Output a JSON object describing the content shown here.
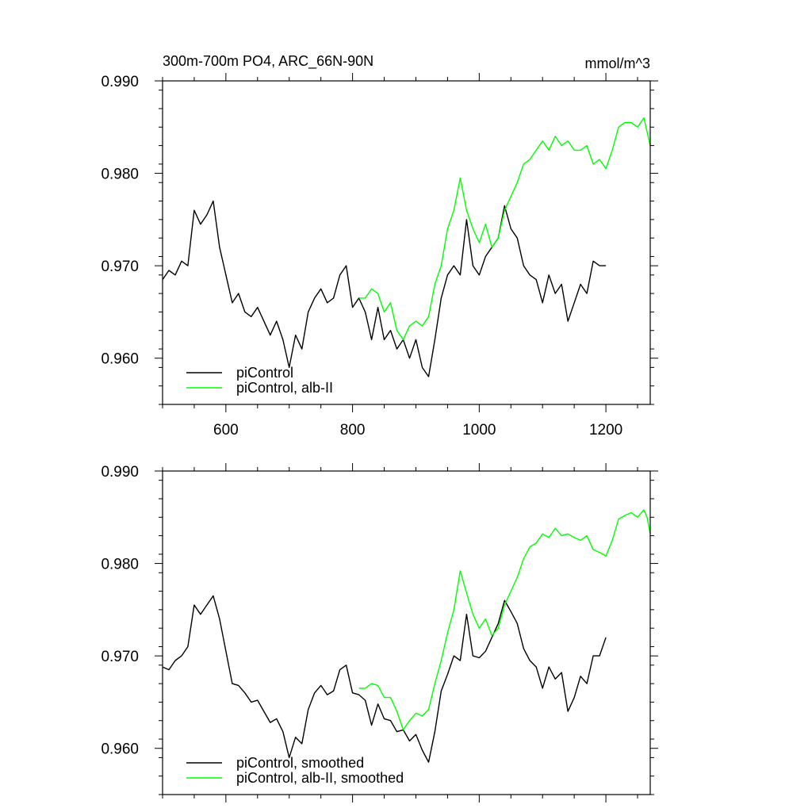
{
  "chart_data": [
    {
      "type": "line",
      "title": "300m-700m PO4, ARC_66N-90N",
      "units": "mmol/m^3",
      "xlim": [
        500,
        1270
      ],
      "ylim": [
        0.955,
        0.99
      ],
      "x_ticks": [
        600,
        800,
        1000,
        1200
      ],
      "x_tick_labels": [
        "600",
        "800",
        "1000",
        "1200"
      ],
      "y_ticks": [
        0.96,
        0.97,
        0.98,
        0.99
      ],
      "y_tick_labels": [
        "0.960",
        "0.970",
        "0.980",
        "0.990"
      ],
      "show_x_tick_labels": true,
      "grid": false,
      "legend_position": "bottom-left",
      "series": [
        {
          "name": "piControl",
          "color": "#000000",
          "x": [
            500,
            510,
            520,
            530,
            540,
            550,
            560,
            570,
            580,
            590,
            600,
            610,
            620,
            630,
            640,
            650,
            660,
            670,
            680,
            690,
            700,
            710,
            720,
            730,
            740,
            750,
            760,
            770,
            780,
            790,
            800,
            810,
            820,
            830,
            840,
            850,
            860,
            870,
            880,
            890,
            900,
            910,
            920,
            930,
            940,
            950,
            960,
            970,
            980,
            990,
            1000,
            1010,
            1020,
            1030,
            1040,
            1050,
            1060,
            1070,
            1080,
            1090,
            1100,
            1110,
            1120,
            1130,
            1140,
            1150,
            1160,
            1170,
            1180,
            1190,
            1200
          ],
          "y": [
            0.9685,
            0.9695,
            0.969,
            0.9705,
            0.97,
            0.976,
            0.9745,
            0.9755,
            0.977,
            0.972,
            0.969,
            0.966,
            0.967,
            0.965,
            0.9645,
            0.9655,
            0.964,
            0.9625,
            0.964,
            0.962,
            0.959,
            0.9625,
            0.961,
            0.965,
            0.9665,
            0.9675,
            0.966,
            0.9665,
            0.969,
            0.97,
            0.9655,
            0.9665,
            0.965,
            0.962,
            0.9655,
            0.962,
            0.963,
            0.961,
            0.962,
            0.96,
            0.962,
            0.959,
            0.958,
            0.962,
            0.9665,
            0.969,
            0.97,
            0.969,
            0.975,
            0.97,
            0.969,
            0.971,
            0.972,
            0.973,
            0.9765,
            0.974,
            0.973,
            0.97,
            0.969,
            0.9685,
            0.966,
            0.969,
            0.967,
            0.968,
            0.964,
            0.966,
            0.968,
            0.967,
            0.9705,
            0.97,
            0.97
          ]
        },
        {
          "name": "piControl, alb-II",
          "color": "#00ff00",
          "x": [
            810,
            820,
            830,
            840,
            850,
            860,
            870,
            880,
            890,
            900,
            910,
            920,
            930,
            940,
            950,
            960,
            970,
            980,
            990,
            1000,
            1010,
            1020,
            1030,
            1040,
            1050,
            1060,
            1070,
            1080,
            1090,
            1100,
            1110,
            1120,
            1130,
            1140,
            1150,
            1160,
            1170,
            1180,
            1190,
            1200,
            1210,
            1220,
            1230,
            1240,
            1250,
            1260,
            1265,
            1270
          ],
          "y": [
            0.9665,
            0.9665,
            0.9675,
            0.967,
            0.965,
            0.966,
            0.963,
            0.962,
            0.9635,
            0.964,
            0.9635,
            0.9645,
            0.968,
            0.97,
            0.974,
            0.976,
            0.9795,
            0.976,
            0.974,
            0.9725,
            0.9745,
            0.972,
            0.973,
            0.976,
            0.9775,
            0.979,
            0.981,
            0.9815,
            0.9825,
            0.9835,
            0.9825,
            0.984,
            0.983,
            0.9835,
            0.9825,
            0.9825,
            0.983,
            0.981,
            0.9815,
            0.9805,
            0.9825,
            0.985,
            0.9855,
            0.9855,
            0.985,
            0.986,
            0.9845,
            0.983
          ]
        }
      ]
    },
    {
      "type": "line",
      "xlim": [
        500,
        1270
      ],
      "ylim": [
        0.955,
        0.99
      ],
      "x_ticks": [
        600,
        800,
        1000,
        1200
      ],
      "y_ticks": [
        0.96,
        0.97,
        0.98,
        0.99
      ],
      "y_tick_labels": [
        "0.960",
        "0.970",
        "0.980",
        "0.990"
      ],
      "show_x_tick_labels": false,
      "grid": false,
      "legend_position": "bottom-left",
      "series": [
        {
          "name": "piControl, smoothed",
          "color": "#000000",
          "x": [
            500,
            510,
            520,
            530,
            540,
            550,
            560,
            570,
            580,
            590,
            600,
            610,
            620,
            630,
            640,
            650,
            660,
            670,
            680,
            690,
            700,
            710,
            720,
            730,
            740,
            750,
            760,
            770,
            780,
            790,
            800,
            810,
            820,
            830,
            840,
            850,
            860,
            870,
            880,
            890,
            900,
            910,
            920,
            930,
            940,
            950,
            960,
            970,
            980,
            990,
            1000,
            1010,
            1020,
            1030,
            1040,
            1050,
            1060,
            1070,
            1080,
            1090,
            1100,
            1110,
            1120,
            1130,
            1140,
            1150,
            1160,
            1170,
            1180,
            1190,
            1200
          ],
          "y": [
            0.9688,
            0.9685,
            0.9695,
            0.97,
            0.971,
            0.9755,
            0.9745,
            0.9755,
            0.9765,
            0.974,
            0.9705,
            0.967,
            0.9668,
            0.966,
            0.965,
            0.9652,
            0.964,
            0.9628,
            0.9632,
            0.9618,
            0.959,
            0.9612,
            0.9605,
            0.9642,
            0.966,
            0.9668,
            0.9658,
            0.9662,
            0.9685,
            0.969,
            0.966,
            0.9658,
            0.9652,
            0.9625,
            0.9648,
            0.9632,
            0.963,
            0.9618,
            0.962,
            0.9608,
            0.9615,
            0.9598,
            0.9585,
            0.9618,
            0.9662,
            0.968,
            0.97,
            0.9695,
            0.9745,
            0.97,
            0.9698,
            0.9705,
            0.972,
            0.9735,
            0.976,
            0.9748,
            0.9735,
            0.9708,
            0.9695,
            0.9688,
            0.9665,
            0.9688,
            0.9675,
            0.9682,
            0.964,
            0.9655,
            0.9678,
            0.967,
            0.97,
            0.97,
            0.972
          ]
        },
        {
          "name": "piControl, alb-II, smoothed",
          "color": "#00ff00",
          "x": [
            810,
            820,
            830,
            840,
            850,
            860,
            870,
            880,
            890,
            900,
            910,
            920,
            930,
            940,
            950,
            960,
            970,
            980,
            990,
            1000,
            1010,
            1020,
            1030,
            1040,
            1050,
            1060,
            1070,
            1080,
            1090,
            1100,
            1110,
            1120,
            1130,
            1140,
            1150,
            1160,
            1170,
            1180,
            1190,
            1200,
            1210,
            1220,
            1230,
            1240,
            1250,
            1260,
            1265,
            1270
          ],
          "y": [
            0.9665,
            0.9665,
            0.967,
            0.9668,
            0.9655,
            0.9655,
            0.964,
            0.962,
            0.963,
            0.9638,
            0.9635,
            0.9642,
            0.967,
            0.9695,
            0.9725,
            0.975,
            0.9792,
            0.9768,
            0.9745,
            0.973,
            0.974,
            0.9722,
            0.973,
            0.9755,
            0.977,
            0.9785,
            0.9805,
            0.9818,
            0.9822,
            0.9832,
            0.9828,
            0.9838,
            0.983,
            0.9832,
            0.9828,
            0.9825,
            0.983,
            0.9815,
            0.9812,
            0.9808,
            0.9825,
            0.9848,
            0.9852,
            0.9855,
            0.985,
            0.9858,
            0.985,
            0.9832
          ]
        }
      ]
    }
  ]
}
